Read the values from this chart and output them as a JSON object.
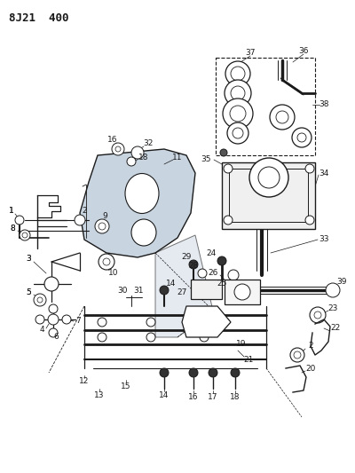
{
  "title": "8J21  400",
  "bg_color": "#ffffff",
  "line_color": "#1a1a1a",
  "title_fontsize": 9,
  "label_fontsize": 6.5,
  "fig_width": 4.0,
  "fig_height": 5.33,
  "dpi": 100
}
